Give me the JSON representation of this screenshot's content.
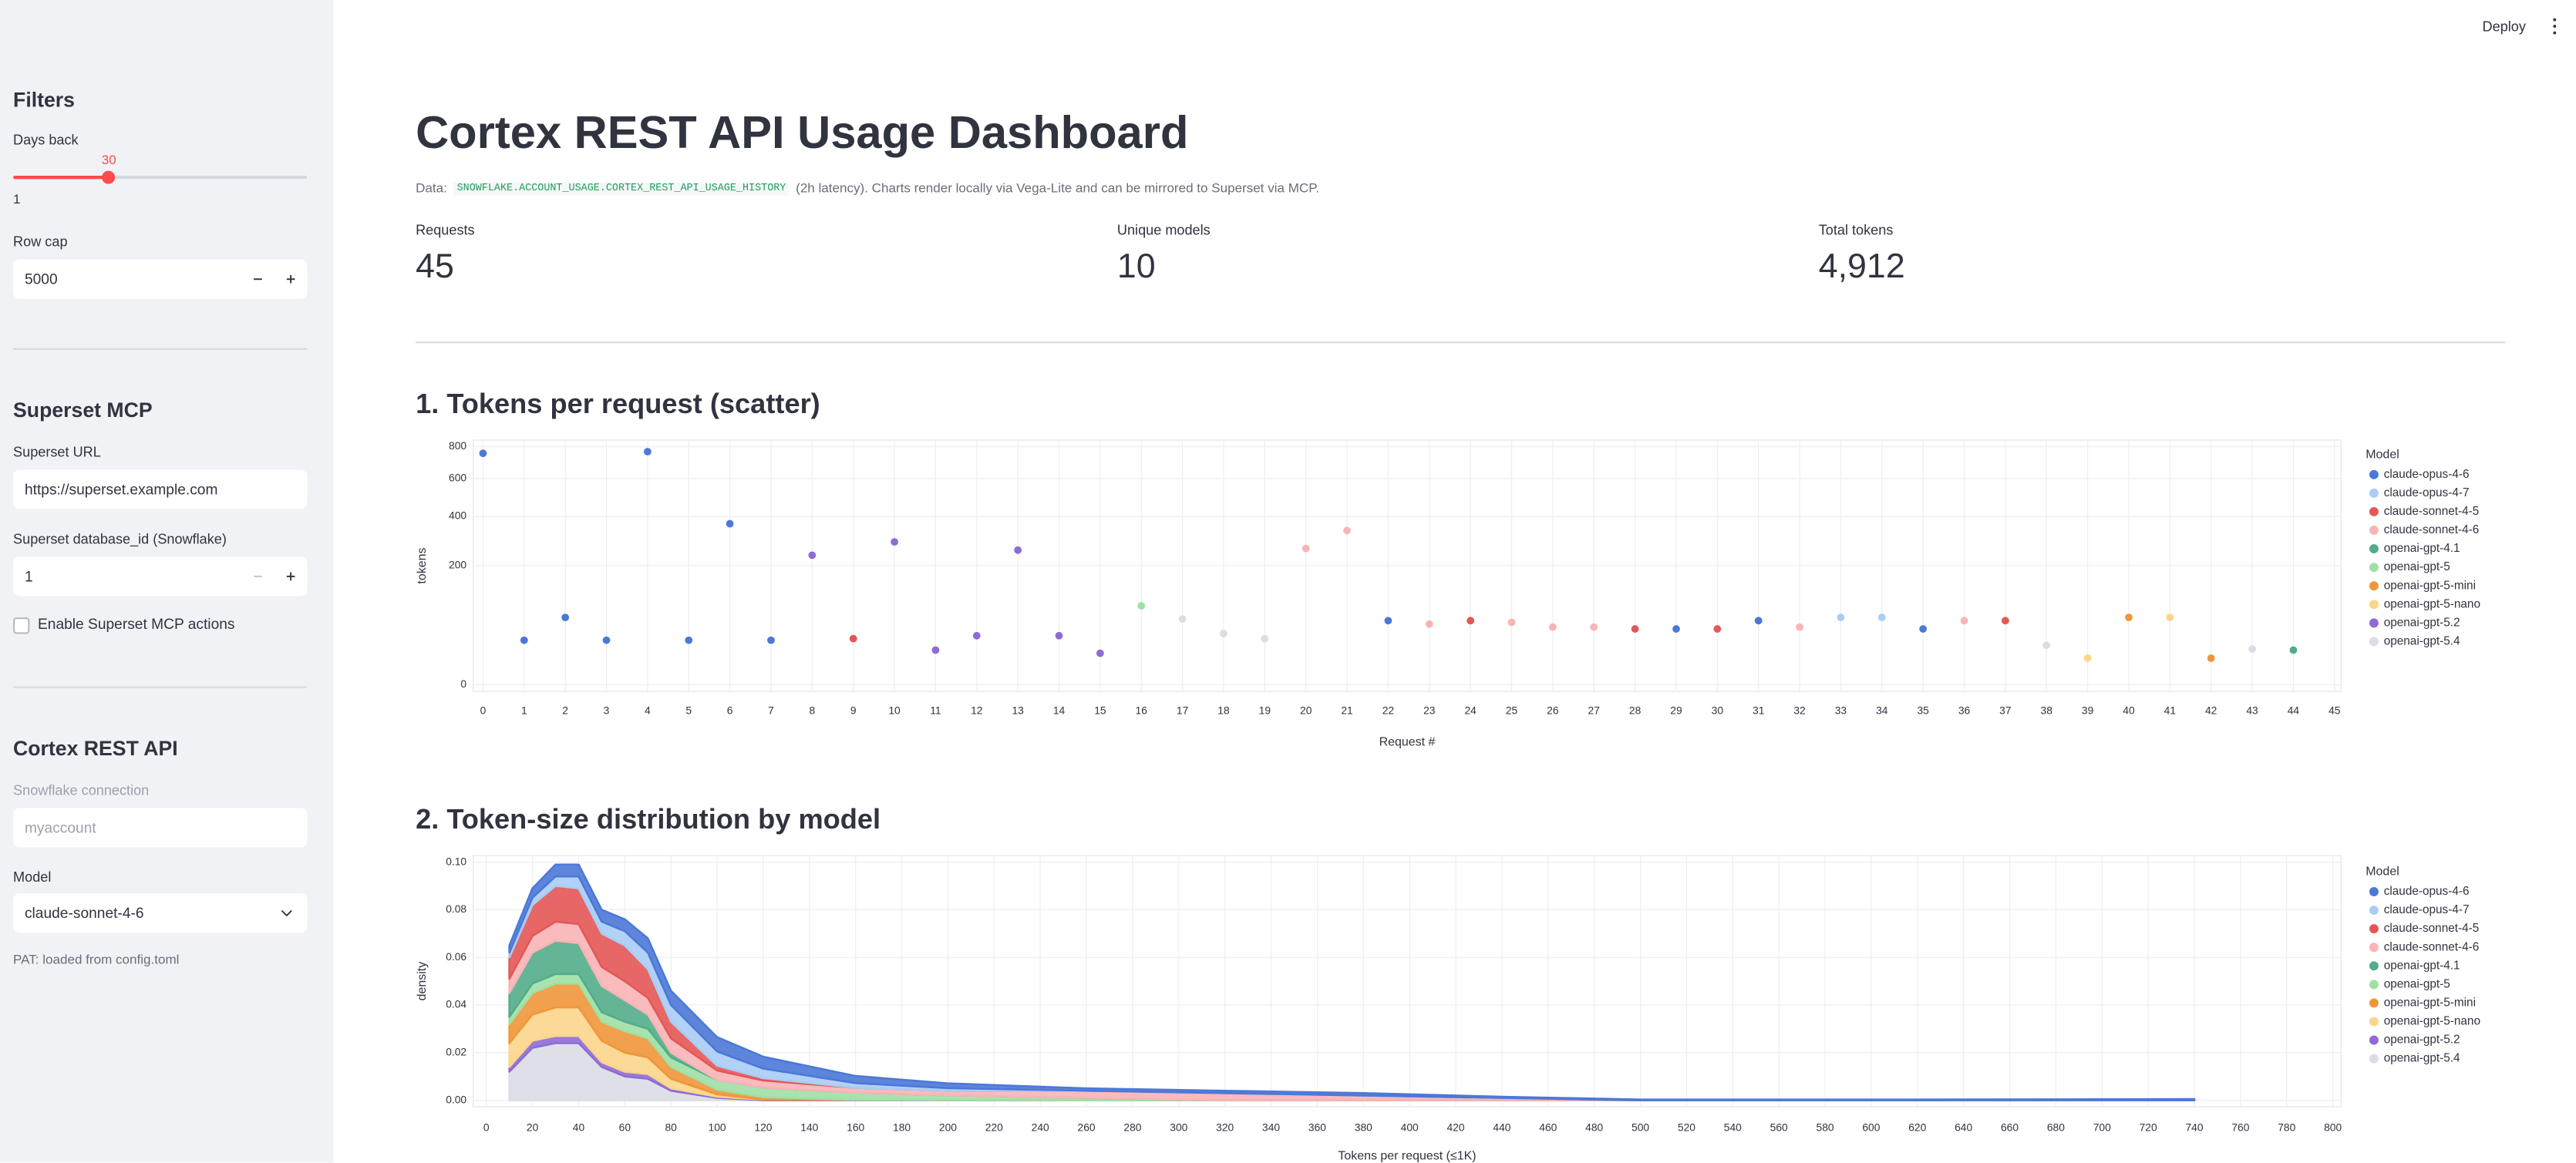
{
  "header": {
    "deploy": "Deploy"
  },
  "sidebar": {
    "filters_title": "Filters",
    "days_back": {
      "label": "Days back",
      "value": 30,
      "min": 1,
      "max": 90
    },
    "row_cap": {
      "label": "Row cap",
      "value": "5000"
    },
    "superset_title": "Superset MCP",
    "superset_url": {
      "label": "Superset URL",
      "value": "https://superset.example.com"
    },
    "database_id": {
      "label": "Superset database_id (Snowflake)",
      "value": "1"
    },
    "enable_actions": "Enable Superset MCP actions",
    "cortex_title": "Cortex REST API",
    "connection": {
      "label": "Snowflake connection",
      "placeholder": "myaccount"
    },
    "model": {
      "label": "Model",
      "value": "claude-sonnet-4-6"
    },
    "pat_note": "PAT: loaded from config.toml"
  },
  "main": {
    "title": "Cortex REST API Usage Dashboard",
    "caption": {
      "prefix": "Data:",
      "code": "SNOWFLAKE.ACCOUNT_USAGE.CORTEX_REST_API_USAGE_HISTORY",
      "suffix": "(2h latency). Charts render locally via Vega-Lite and can be mirrored to Superset via MCP."
    },
    "metrics": [
      {
        "label": "Requests",
        "value": "45"
      },
      {
        "label": "Unique models",
        "value": "10"
      },
      {
        "label": "Total tokens",
        "value": "4,912"
      }
    ]
  },
  "chart_data": [
    {
      "type": "scatter",
      "title": "1. Tokens per request (scatter)",
      "x_label": "Request #",
      "y_label": "tokens",
      "legend_title": "Model",
      "yscale": "sqrt",
      "grid": true,
      "xlim": [
        0,
        45
      ],
      "xticks": [
        0,
        1,
        2,
        3,
        4,
        5,
        6,
        7,
        8,
        9,
        10,
        11,
        12,
        13,
        14,
        15,
        16,
        17,
        18,
        19,
        20,
        21,
        22,
        23,
        24,
        25,
        26,
        27,
        28,
        29,
        30,
        31,
        32,
        33,
        34,
        35,
        36,
        37,
        38,
        39,
        40,
        41,
        42,
        43,
        44,
        45
      ],
      "ylim": [
        0,
        800
      ],
      "yticks": [
        0,
        200,
        400,
        600,
        800
      ],
      "series": [
        {
          "name": "claude-opus-4-6",
          "color": "#4c78d8",
          "x": [
            0,
            1,
            2,
            3,
            4,
            5,
            6,
            7,
            22,
            29,
            31,
            35
          ],
          "values": [
            756,
            28,
            64,
            28,
            767,
            28,
            366,
            28,
            58,
            44,
            58,
            44
          ]
        },
        {
          "name": "claude-opus-4-7",
          "color": "#a9cdf5",
          "x": [
            33,
            34
          ],
          "values": [
            64,
            64
          ]
        },
        {
          "name": "claude-sonnet-4-5",
          "color": "#e45756",
          "x": [
            9,
            24,
            28,
            30,
            37
          ],
          "values": [
            30,
            58,
            44,
            44,
            58
          ]
        },
        {
          "name": "claude-sonnet-4-6",
          "color": "#f8b4b6",
          "x": [
            20,
            21,
            23,
            25,
            26,
            27,
            32,
            36
          ],
          "values": [
            262,
            336,
            52,
            55,
            47,
            47,
            47,
            58
          ]
        },
        {
          "name": "openai-gpt-4.1",
          "color": "#53ad89",
          "x": [
            44
          ],
          "values": [
            17
          ]
        },
        {
          "name": "openai-gpt-5",
          "color": "#9fe0a6",
          "x": [
            16
          ],
          "values": [
            88
          ]
        },
        {
          "name": "openai-gpt-5-mini",
          "color": "#f0963a",
          "x": [
            40,
            42
          ],
          "values": [
            64,
            10
          ]
        },
        {
          "name": "openai-gpt-5-nano",
          "color": "#fbd58b",
          "x": [
            39,
            41
          ],
          "values": [
            10,
            64
          ]
        },
        {
          "name": "openai-gpt-5.2",
          "color": "#8e6cd4",
          "x": [
            8,
            10,
            11,
            12,
            13,
            14,
            15
          ],
          "values": [
            237,
            288,
            17,
            34,
            256,
            34,
            14
          ]
        },
        {
          "name": "openai-gpt-5.4",
          "color": "#dcdde4",
          "x": [
            17,
            18,
            19,
            38,
            43
          ],
          "values": [
            61,
            37,
            30,
            22,
            18
          ]
        }
      ]
    },
    {
      "type": "area",
      "title": "2. Token-size distribution by model",
      "x_label": "Tokens per request (≤1K)",
      "y_label": "density",
      "legend_title": "Model",
      "stacked": true,
      "grid": true,
      "xlim": [
        0,
        800
      ],
      "xticks": [
        0,
        20,
        40,
        60,
        80,
        100,
        120,
        140,
        160,
        180,
        200,
        220,
        240,
        260,
        280,
        300,
        320,
        340,
        360,
        380,
        400,
        420,
        440,
        460,
        480,
        500,
        520,
        540,
        560,
        580,
        600,
        620,
        640,
        660,
        680,
        700,
        720,
        740,
        760,
        780,
        800
      ],
      "ylim": [
        0,
        0.1
      ],
      "yticks": [
        {
          "value": 0,
          "label": "0.00"
        },
        0.02,
        0.04,
        0.06,
        0.08,
        {
          "value": 0.1,
          "label": "0.10"
        }
      ],
      "x": [
        10,
        20,
        30,
        40,
        50,
        60,
        70,
        80,
        100,
        120,
        160,
        200,
        260,
        320,
        380,
        440,
        500,
        560,
        620,
        680,
        740
      ],
      "series": [
        {
          "name": "claude-opus-4-6",
          "color": "#4c78d8",
          "values": [
            0.003,
            0.004,
            0.005,
            0.005,
            0.005,
            0.005,
            0.006,
            0.006,
            0.006,
            0.005,
            0.003,
            0.002,
            0.001,
            0.001,
            0.001,
            0.0005,
            0.0003,
            0.0003,
            0.0003,
            0.0004,
            0.0005
          ]
        },
        {
          "name": "claude-opus-4-7",
          "color": "#a9cdf5",
          "values": [
            0.002,
            0.003,
            0.004,
            0.005,
            0.005,
            0.006,
            0.007,
            0.007,
            0.006,
            0.004,
            0.002,
            0.001,
            0,
            0,
            0,
            0,
            0,
            0,
            0,
            0,
            0
          ]
        },
        {
          "name": "claude-sonnet-4-5",
          "color": "#e45756",
          "values": [
            0.009,
            0.013,
            0.015,
            0.015,
            0.014,
            0.015,
            0.012,
            0.007,
            0.002,
            0.001,
            0,
            0,
            0,
            0,
            0,
            0,
            0,
            0,
            0,
            0,
            0
          ]
        },
        {
          "name": "claude-sonnet-4-6",
          "color": "#f8b4b6",
          "values": [
            0.006,
            0.007,
            0.008,
            0.008,
            0.008,
            0.008,
            0.007,
            0.006,
            0.004,
            0.003,
            0.002,
            0.002,
            0.003,
            0.003,
            0.002,
            0.001,
            0,
            0,
            0,
            0,
            0
          ]
        },
        {
          "name": "openai-gpt-4.1",
          "color": "#53ad89",
          "values": [
            0.01,
            0.013,
            0.014,
            0.013,
            0.011,
            0.009,
            0.006,
            0.002,
            0,
            0,
            0,
            0,
            0,
            0,
            0,
            0,
            0,
            0,
            0,
            0,
            0
          ]
        },
        {
          "name": "openai-gpt-5",
          "color": "#9fe0a6",
          "values": [
            0.003,
            0.004,
            0.004,
            0.004,
            0.004,
            0.004,
            0.004,
            0.004,
            0.004,
            0.004,
            0.003,
            0.002,
            0.001,
            0,
            0,
            0,
            0,
            0,
            0,
            0,
            0
          ]
        },
        {
          "name": "openai-gpt-5-mini",
          "color": "#f0963a",
          "values": [
            0.008,
            0.009,
            0.01,
            0.01,
            0.008,
            0.009,
            0.008,
            0.005,
            0.002,
            0.001,
            0,
            0,
            0,
            0,
            0,
            0,
            0,
            0,
            0,
            0,
            0
          ]
        },
        {
          "name": "openai-gpt-5-nano",
          "color": "#fbd58b",
          "values": [
            0.01,
            0.011,
            0.012,
            0.012,
            0.009,
            0.008,
            0.007,
            0.004,
            0.001,
            0,
            0,
            0,
            0,
            0,
            0,
            0,
            0,
            0,
            0,
            0,
            0
          ]
        },
        {
          "name": "openai-gpt-5.2",
          "color": "#8e6cd4",
          "values": [
            0.002,
            0.003,
            0.003,
            0.003,
            0.002,
            0.002,
            0.002,
            0.001,
            0.0005,
            0.0003,
            0.0002,
            0.0001,
            0,
            0,
            0,
            0,
            0,
            0,
            0,
            0,
            0
          ]
        },
        {
          "name": "openai-gpt-5.4",
          "color": "#dcdde4",
          "values": [
            0.012,
            0.022,
            0.024,
            0.024,
            0.014,
            0.01,
            0.009,
            0.004,
            0.001,
            0,
            0,
            0,
            0,
            0,
            0,
            0,
            0,
            0,
            0,
            0,
            0
          ]
        }
      ]
    }
  ]
}
